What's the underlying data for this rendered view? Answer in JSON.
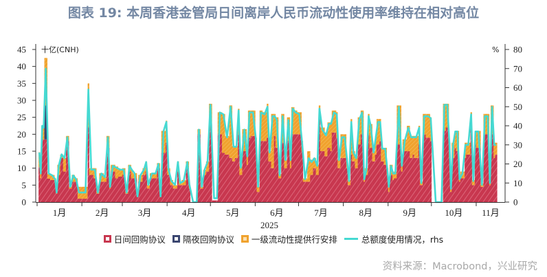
{
  "title": "图表 19: 本周香港金管局日间离岸人民币流动性使用率维持在相对高位",
  "source": "资料来源：Macrobond，兴业研究",
  "chart_data": {
    "type": "bar",
    "stacked": true,
    "left_axis": {
      "label": "十亿(CNH)",
      "ylim": [
        0,
        45
      ],
      "ticks": [
        0,
        5,
        10,
        15,
        20,
        25,
        30,
        35,
        40,
        45
      ]
    },
    "right_axis": {
      "label": "%",
      "ylim": [
        0,
        80
      ],
      "ticks": [
        0,
        10,
        20,
        30,
        40,
        50,
        60,
        70,
        80
      ]
    },
    "x_axis": {
      "label": "2025",
      "range": [
        "2025-01-01",
        "2025-11-21"
      ],
      "ticks": [
        "1月",
        "2月",
        "3月",
        "4月",
        "5月",
        "6月",
        "7月",
        "8月",
        "9月",
        "10月",
        "11月"
      ]
    },
    "grid": false,
    "legend_position": "bottom",
    "colors": {
      "intraday_repo": "#c8374f",
      "overnight_repo": "#3b4670",
      "liquidity_facility": "#f0a22e",
      "usage_rhs": "#45d9d2"
    },
    "legend": [
      "日间回购协议",
      "隔夜回购协议",
      "一级流动性提供行安排",
      "总额度使用情况，rhs"
    ],
    "columns": [
      "date",
      "日间回购协议",
      "隔夜回购协议",
      "一级流动性提供行安排",
      "总额度使用情况，rhs"
    ],
    "rows": [
      [
        "2025-01-02",
        10.3,
        0,
        4.4,
        26
      ],
      [
        "2025-01-03",
        7,
        0,
        1.3,
        15
      ],
      [
        "2025-01-04",
        18.5,
        0,
        4,
        40
      ],
      [
        "2025-01-05",
        18.5,
        0,
        3.5,
        39
      ],
      [
        "2025-01-06",
        18.5,
        10,
        14,
        70
      ],
      [
        "2025-01-08",
        6.9,
        0,
        1.4,
        15
      ],
      [
        "2025-01-10",
        6.5,
        0,
        1.5,
        14
      ],
      [
        "2025-01-13",
        6,
        0,
        1,
        12
      ],
      [
        "2025-01-14",
        2.5,
        0,
        0.5,
        5
      ],
      [
        "2025-01-15",
        8,
        0,
        3,
        19
      ],
      [
        "2025-01-17",
        13,
        0,
        1,
        25
      ],
      [
        "2025-01-19",
        9,
        0,
        4,
        23
      ],
      [
        "2025-01-21",
        18,
        0,
        1.5,
        34
      ],
      [
        "2025-01-23",
        4,
        0,
        0.5,
        8
      ],
      [
        "2025-01-25",
        6,
        0,
        2,
        14
      ],
      [
        "2025-01-27",
        6,
        0,
        1,
        12
      ],
      [
        "2025-01-29",
        1,
        0,
        3.5,
        5
      ],
      [
        "2025-01-31",
        1,
        0,
        3.5,
        5
      ],
      [
        "2025-02-02",
        1,
        0,
        3.5,
        5
      ],
      [
        "2025-02-05",
        22,
        0,
        13,
        59
      ],
      [
        "2025-02-06",
        8,
        0,
        2,
        17
      ],
      [
        "2025-02-09",
        7,
        0,
        3,
        17
      ],
      [
        "2025-02-11",
        2.5,
        0,
        0.5,
        5
      ],
      [
        "2025-02-13",
        6,
        0,
        2.5,
        15
      ],
      [
        "2025-02-16",
        6,
        0,
        1.5,
        13
      ],
      [
        "2025-02-18",
        16,
        0,
        3.5,
        34
      ],
      [
        "2025-02-20",
        4,
        0,
        0.5,
        8
      ],
      [
        "2025-02-21",
        9,
        0,
        2,
        19
      ],
      [
        "2025-02-24",
        7,
        0,
        3.5,
        18
      ],
      [
        "2025-02-26",
        7.5,
        0,
        2,
        17
      ],
      [
        "2025-03-01",
        8,
        0,
        2,
        17
      ],
      [
        "2025-03-03",
        2.5,
        0,
        0.5,
        5
      ],
      [
        "2025-03-05",
        9,
        0,
        2,
        19
      ],
      [
        "2025-03-07",
        7,
        0,
        2.5,
        17
      ],
      [
        "2025-03-08",
        7,
        0,
        1.5,
        15
      ],
      [
        "2025-03-11",
        1.5,
        0,
        0.5,
        3
      ],
      [
        "2025-03-12",
        6,
        0,
        2,
        14
      ],
      [
        "2025-03-15",
        8,
        0,
        2,
        17
      ],
      [
        "2025-03-17",
        9,
        0,
        3,
        21
      ],
      [
        "2025-03-18",
        4,
        0,
        1,
        9
      ],
      [
        "2025-03-20",
        7,
        0,
        1.5,
        15
      ],
      [
        "2025-03-23",
        7,
        0,
        1.5,
        15
      ],
      [
        "2025-03-25",
        10,
        0,
        1.5,
        20
      ],
      [
        "2025-03-27",
        1.5,
        0,
        0.5,
        3
      ],
      [
        "2025-03-28",
        14.5,
        0,
        6.5,
        37
      ],
      [
        "2025-03-31",
        17.5,
        0,
        6.5,
        42
      ],
      [
        "2025-04-01",
        8,
        0,
        2,
        17
      ],
      [
        "2025-04-03",
        5,
        0,
        1.5,
        11
      ],
      [
        "2025-04-05",
        4,
        0,
        1,
        9
      ],
      [
        "2025-04-08",
        9,
        0,
        3,
        21
      ],
      [
        "2025-04-09",
        5,
        0,
        1,
        10
      ],
      [
        "2025-04-11",
        5,
        0,
        1.5,
        11
      ],
      [
        "2025-04-14",
        10,
        0,
        2,
        21
      ],
      [
        "2025-04-16",
        4,
        0,
        1,
        9
      ],
      [
        "2025-04-17",
        0,
        0,
        0,
        0
      ],
      [
        "2025-04-21",
        0,
        0,
        0,
        0
      ],
      [
        "2025-04-22",
        20,
        0,
        1.5,
        38
      ],
      [
        "2025-04-24",
        4,
        0,
        0.5,
        8
      ],
      [
        "2025-04-26",
        8,
        0,
        1.5,
        17
      ],
      [
        "2025-04-28",
        9,
        0,
        3,
        21
      ],
      [
        "2025-04-30",
        23,
        0,
        6,
        51
      ],
      [
        "2025-05-02",
        0.5,
        0,
        0,
        2
      ],
      [
        "2025-05-05",
        0.5,
        0,
        0,
        2
      ],
      [
        "2025-05-06",
        20,
        0,
        6.5,
        47
      ],
      [
        "2025-05-09",
        14.5,
        0,
        11.5,
        46
      ],
      [
        "2025-05-11",
        14,
        0,
        5.5,
        34
      ],
      [
        "2025-05-14",
        13,
        0,
        15.5,
        50
      ],
      [
        "2025-05-16",
        12,
        0,
        4.5,
        29
      ],
      [
        "2025-05-18",
        13,
        0,
        3.5,
        29
      ],
      [
        "2025-05-20",
        20,
        0,
        7.5,
        48
      ],
      [
        "2025-05-21",
        8,
        0,
        2.5,
        18
      ],
      [
        "2025-05-23",
        15,
        0,
        6.5,
        38
      ],
      [
        "2025-05-26",
        11,
        0,
        2.5,
        24
      ],
      [
        "2025-05-27",
        19,
        0,
        8,
        47
      ],
      [
        "2025-05-29",
        19.5,
        0,
        7.5,
        47
      ],
      [
        "2025-06-01",
        17,
        0,
        2,
        33
      ],
      [
        "2025-06-02",
        3,
        0,
        1.5,
        8
      ],
      [
        "2025-06-04",
        18,
        0,
        9,
        47
      ],
      [
        "2025-06-06",
        18,
        0,
        8.5,
        46
      ],
      [
        "2025-06-09",
        19,
        0,
        10,
        50
      ],
      [
        "2025-06-10",
        12,
        0,
        3,
        26
      ],
      [
        "2025-06-12",
        10,
        0,
        16,
        45
      ],
      [
        "2025-06-14",
        19.5,
        0,
        6.5,
        45
      ],
      [
        "2025-06-15",
        16,
        0,
        9,
        43
      ],
      [
        "2025-06-17",
        7,
        0,
        1.3,
        14
      ],
      [
        "2025-06-19",
        17.5,
        0,
        8.5,
        45
      ],
      [
        "2025-06-21",
        10,
        0,
        2.4,
        22
      ],
      [
        "2025-06-23",
        18,
        0,
        7,
        43
      ],
      [
        "2025-06-25",
        10,
        0,
        2.4,
        22
      ],
      [
        "2025-06-26",
        20,
        0,
        8,
        49
      ],
      [
        "2025-06-28",
        20,
        0,
        7,
        47
      ],
      [
        "2025-06-30",
        20,
        0,
        6.5,
        46
      ],
      [
        "2025-07-03",
        15,
        0,
        3,
        31
      ],
      [
        "2025-07-04",
        6,
        0,
        1,
        12
      ],
      [
        "2025-07-07",
        6,
        0,
        9,
        23
      ],
      [
        "2025-07-09",
        8,
        0,
        4.5,
        21
      ],
      [
        "2025-07-11",
        10,
        0,
        3,
        23
      ],
      [
        "2025-07-13",
        8,
        0,
        3,
        19
      ],
      [
        "2025-07-15",
        26,
        0,
        2.5,
        49
      ],
      [
        "2025-07-16",
        15,
        0,
        7,
        38
      ],
      [
        "2025-07-19",
        13.5,
        0,
        7,
        35
      ],
      [
        "2025-07-21",
        16,
        0,
        7.5,
        41
      ],
      [
        "2025-07-23",
        15,
        0,
        8.5,
        41
      ],
      [
        "2025-07-24",
        20.5,
        0,
        6.5,
        47
      ],
      [
        "2025-07-27",
        19,
        0,
        7.5,
        46
      ],
      [
        "2025-07-28",
        10,
        0,
        2.5,
        22
      ],
      [
        "2025-07-30",
        13,
        0,
        7,
        34
      ],
      [
        "2025-08-01",
        13,
        0,
        7,
        34
      ],
      [
        "2025-08-03",
        10,
        0,
        3,
        23
      ],
      [
        "2025-08-04",
        5,
        0,
        1.5,
        11
      ],
      [
        "2025-08-06",
        14,
        0,
        10.5,
        42
      ],
      [
        "2025-08-07",
        12,
        0,
        3,
        26
      ],
      [
        "2025-08-09",
        10,
        0,
        3.5,
        23
      ],
      [
        "2025-08-11",
        17,
        0,
        8,
        43
      ],
      [
        "2025-08-13",
        20,
        0,
        7,
        47
      ],
      [
        "2025-08-15",
        6,
        0,
        1,
        12
      ],
      [
        "2025-08-16",
        8,
        0,
        2,
        17
      ],
      [
        "2025-08-18",
        20,
        0,
        6,
        45
      ],
      [
        "2025-08-19",
        16,
        0,
        7,
        40
      ],
      [
        "2025-08-21",
        12,
        0,
        3,
        26
      ],
      [
        "2025-08-23",
        14,
        0,
        5.5,
        34
      ],
      [
        "2025-08-24",
        17,
        0,
        7.5,
        42
      ],
      [
        "2025-08-26",
        18,
        0,
        6.5,
        42
      ],
      [
        "2025-08-27",
        12,
        0,
        4,
        28
      ],
      [
        "2025-08-29",
        11,
        0,
        5,
        28
      ],
      [
        "2025-08-31",
        8,
        0,
        2,
        17
      ],
      [
        "2025-09-01",
        3,
        0,
        1.5,
        8
      ],
      [
        "2025-09-02",
        8,
        0,
        3,
        19
      ],
      [
        "2025-09-04",
        6.5,
        0,
        2,
        15
      ],
      [
        "2025-09-05",
        7,
        0,
        2,
        15
      ],
      [
        "2025-09-07",
        17,
        0,
        11.5,
        50
      ],
      [
        "2025-09-10",
        9,
        0,
        2,
        19
      ],
      [
        "2025-09-11",
        15,
        0,
        3.5,
        32
      ],
      [
        "2025-09-14",
        15,
        0,
        7.5,
        39
      ],
      [
        "2025-09-16",
        13,
        0,
        6.5,
        34
      ],
      [
        "2025-09-18",
        14,
        0,
        5.5,
        34
      ],
      [
        "2025-09-19",
        13,
        0,
        6.5,
        34
      ],
      [
        "2025-09-22",
        17,
        0,
        5.5,
        39
      ],
      [
        "2025-09-23",
        5,
        0,
        1,
        10
      ],
      [
        "2025-09-25",
        20,
        0,
        6,
        45
      ],
      [
        "2025-09-27",
        19,
        0,
        7,
        45
      ],
      [
        "2025-09-30",
        18,
        0,
        7,
        44
      ],
      [
        "2025-10-01",
        0,
        0,
        0,
        0
      ],
      [
        "2025-10-07",
        0,
        0,
        0,
        0
      ],
      [
        "2025-10-09",
        21,
        0,
        8,
        51
      ],
      [
        "2025-10-11",
        22,
        0,
        7,
        51
      ],
      [
        "2025-10-13",
        13,
        0,
        4.5,
        30
      ],
      [
        "2025-10-14",
        3,
        0,
        1,
        7
      ],
      [
        "2025-10-15",
        13,
        0,
        4.5,
        30
      ],
      [
        "2025-10-17",
        16,
        0,
        5,
        37
      ],
      [
        "2025-10-18",
        15,
        0,
        6,
        37
      ],
      [
        "2025-10-20",
        6,
        0,
        1,
        12
      ],
      [
        "2025-10-21",
        7,
        0,
        2,
        15
      ],
      [
        "2025-10-24",
        13,
        0,
        4.5,
        30
      ],
      [
        "2025-10-25",
        14,
        0,
        3.5,
        30
      ],
      [
        "2025-10-28",
        22,
        0,
        4.5,
        46
      ],
      [
        "2025-10-29",
        5,
        0,
        1.5,
        11
      ],
      [
        "2025-10-31",
        17,
        0,
        4,
        37
      ],
      [
        "2025-11-01",
        16,
        0,
        5,
        37
      ],
      [
        "2025-11-04",
        4.5,
        0,
        1,
        9
      ],
      [
        "2025-11-06",
        20,
        0,
        6,
        45
      ],
      [
        "2025-11-08",
        20,
        0,
        6,
        45
      ],
      [
        "2025-11-10",
        5,
        0,
        1,
        10
      ],
      [
        "2025-11-11",
        20,
        0,
        8.5,
        50
      ],
      [
        "2025-11-13",
        13,
        0,
        4.5,
        30
      ],
      [
        "2025-11-14",
        14,
        0,
        3.5,
        30
      ]
    ]
  }
}
